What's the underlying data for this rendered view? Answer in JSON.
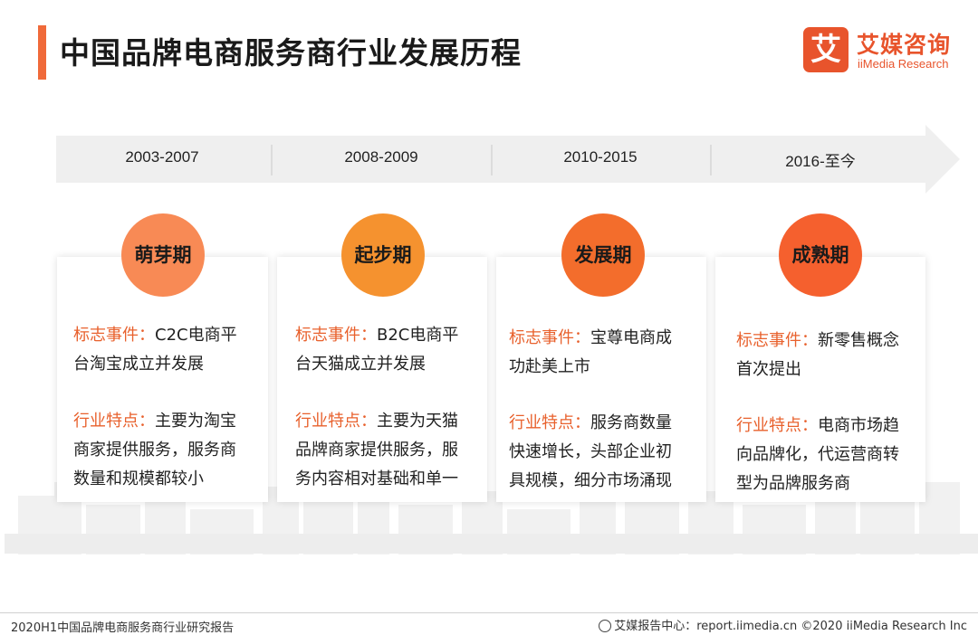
{
  "header": {
    "title": "中国品牌电商服务商行业发展历程"
  },
  "brand": {
    "logo_char": "艾",
    "name_cn": "艾媒咨询",
    "name_en": "iiMedia Research",
    "color": "#e8542c"
  },
  "timeline": {
    "periods": [
      "2003-2007",
      "2008-2009",
      "2010-2015",
      "2016-至今"
    ],
    "band_color": "#efefef"
  },
  "stages": [
    {
      "name": "萌芽期",
      "color": "#f88a55",
      "event_label": "标志事件：",
      "event_lines": [
        "C2C电商平",
        "台淘宝成立并发展"
      ],
      "feature_label": "行业特点：",
      "feature_lines": [
        "主要为淘宝",
        "商家提供服务，服务商",
        "数量和规模都较小"
      ]
    },
    {
      "name": "起步期",
      "color": "#f5922f",
      "event_label": "标志事件：",
      "event_lines": [
        "B2C电商平",
        "台天猫成立并发展"
      ],
      "feature_label": "行业特点：",
      "feature_lines": [
        "主要为天猫",
        "品牌商家提供服务，服",
        "务内容相对基础和单一"
      ]
    },
    {
      "name": "发展期",
      "color": "#f36d2c",
      "event_label": "标志事件：",
      "event_lines": [
        "宝尊电商成",
        "功赴美上市"
      ],
      "feature_label": "行业特点：",
      "feature_lines": [
        "服务商数量",
        "快速增长，头部企业初",
        "具规模，细分市场涌现"
      ]
    },
    {
      "name": "成熟期",
      "color": "#f5602e",
      "event_label": "标志事件：",
      "event_lines": [
        "新零售概念",
        "首次提出"
      ],
      "feature_label": "行业特点：",
      "feature_lines": [
        "电商市场趋",
        "向品牌化，代运营商转",
        "型为品牌服务商"
      ]
    }
  ],
  "footer": {
    "left": "2020H1中国品牌电商服务商行业研究报告",
    "right": "艾媒报告中心：report.iimedia.cn  ©2020  iiMedia Research  Inc"
  }
}
